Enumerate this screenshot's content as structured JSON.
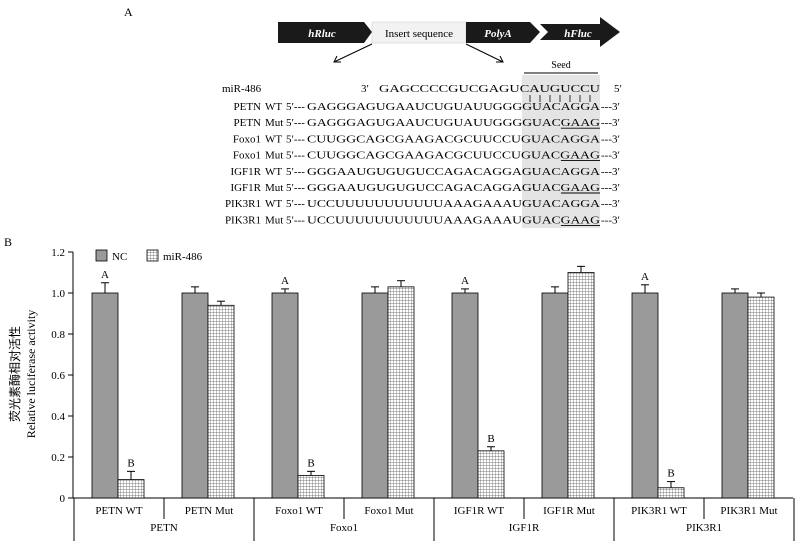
{
  "panel_a": {
    "label": "A",
    "construct": {
      "left_gene": "hRluc",
      "insert": "Insert sequence",
      "polya": "PolyA",
      "right_gene": "hFluc"
    },
    "seed_label": "Seed",
    "mirna": {
      "name": "miR-486",
      "five": "3′",
      "seq": "GAGCCCCGUCGAGUCAUGUCCU",
      "three": "5′"
    },
    "rows": [
      {
        "name": "PETN",
        "type": "WT",
        "prefix": "5′---",
        "seq": "GAGGGAGUGAAUCUGUAUUGGGGUACAGGA",
        "suffix": "---3′",
        "underline": false
      },
      {
        "name": "PETN",
        "type": "Mut",
        "prefix": "5′---",
        "seq": "GAGGGAGUGAAUCUGUAUUGGGGUACGAAG",
        "suffix": "---3′",
        "underline": true
      },
      {
        "name": "Foxo1",
        "type": "WT",
        "prefix": "5′---",
        "seq": "CUUGGCAGCGAAGACGCUUCCUGUACAGGA",
        "suffix": "---3′",
        "underline": false
      },
      {
        "name": "Foxo1",
        "type": "Mut",
        "prefix": "5′---",
        "seq": "CUUGGCAGCGAAGACGCUUCCUGUACGAAG",
        "suffix": "---3′",
        "underline": true
      },
      {
        "name": "IGF1R",
        "type": "WT",
        "prefix": "5′---",
        "seq": "GGGAAUGUGUGUCCAGACAGGAGUACAGGA",
        "suffix": "---3′",
        "underline": false
      },
      {
        "name": "IGF1R",
        "type": "Mut",
        "prefix": "5′---",
        "seq": "GGGAAUGUGUGUCCAGACAGGAGUACGAAG",
        "suffix": "---3′",
        "underline": true
      },
      {
        "name": "PIK3R1",
        "type": "WT",
        "prefix": "5′---",
        "seq": "UCCUUUUUUUUUUUAAAGAAAUGUACAGGA",
        "suffix": "---3′",
        "underline": false
      },
      {
        "name": "PIK3R1",
        "type": "Mut",
        "prefix": "5′---",
        "seq": "UCCUUUUUUUUUUUAAAGAAAUGUACGAAG",
        "suffix": "---3′",
        "underline": true
      }
    ]
  },
  "chart_data": {
    "type": "bar",
    "panel_label": "B",
    "ylabel_cn": "荧光素酶相对活性",
    "ylabel_en": "Relative luciferase activity",
    "ylim": [
      0,
      1.2
    ],
    "yticks": [
      0,
      0.2,
      0.4,
      0.6,
      0.8,
      1.0,
      1.2
    ],
    "ytick_labels": [
      "0",
      "0.2",
      "0.4",
      "0.6",
      "0.8",
      "1.0",
      "1.2"
    ],
    "legend_position": "top-left",
    "series": [
      {
        "name": "NC",
        "color": "#9a9a9a",
        "pattern": "solid"
      },
      {
        "name": "miR-486",
        "color": "#ffffff",
        "pattern": "grid"
      }
    ],
    "groups": [
      {
        "name": "PETN",
        "label": "PETN",
        "subgroups": [
          {
            "label": "PETN   WT",
            "values": [
              1.0,
              0.09
            ],
            "errors": [
              0.05,
              0.04
            ],
            "letters": [
              "A",
              "B"
            ]
          },
          {
            "label": "PETN   Mut",
            "values": [
              1.0,
              0.94
            ],
            "errors": [
              0.03,
              0.02
            ],
            "letters": [
              "",
              ""
            ]
          }
        ]
      },
      {
        "name": "Foxo1",
        "label": "Foxo1",
        "subgroups": [
          {
            "label": "Foxo1   WT",
            "values": [
              1.0,
              0.11
            ],
            "errors": [
              0.02,
              0.02
            ],
            "letters": [
              "A",
              "B"
            ]
          },
          {
            "label": "Foxo1   Mut",
            "values": [
              1.0,
              1.03
            ],
            "errors": [
              0.03,
              0.03
            ],
            "letters": [
              "",
              ""
            ]
          }
        ]
      },
      {
        "name": "IGF1R",
        "label": "IGF1R",
        "subgroups": [
          {
            "label": "IGF1R   WT",
            "values": [
              1.0,
              0.23
            ],
            "errors": [
              0.02,
              0.02
            ],
            "letters": [
              "A",
              "B"
            ]
          },
          {
            "label": "IGF1R   Mut",
            "values": [
              1.0,
              1.1
            ],
            "errors": [
              0.03,
              0.03
            ],
            "letters": [
              "",
              ""
            ]
          }
        ]
      },
      {
        "name": "PIK3R1",
        "label": "PIK3R1",
        "subgroups": [
          {
            "label": "PIK3R1   WT",
            "values": [
              1.0,
              0.05
            ],
            "errors": [
              0.04,
              0.03
            ],
            "letters": [
              "A",
              "B"
            ]
          },
          {
            "label": "PIK3R1   Mut",
            "values": [
              1.0,
              0.98
            ],
            "errors": [
              0.02,
              0.02
            ],
            "letters": [
              "",
              ""
            ]
          }
        ]
      }
    ]
  }
}
